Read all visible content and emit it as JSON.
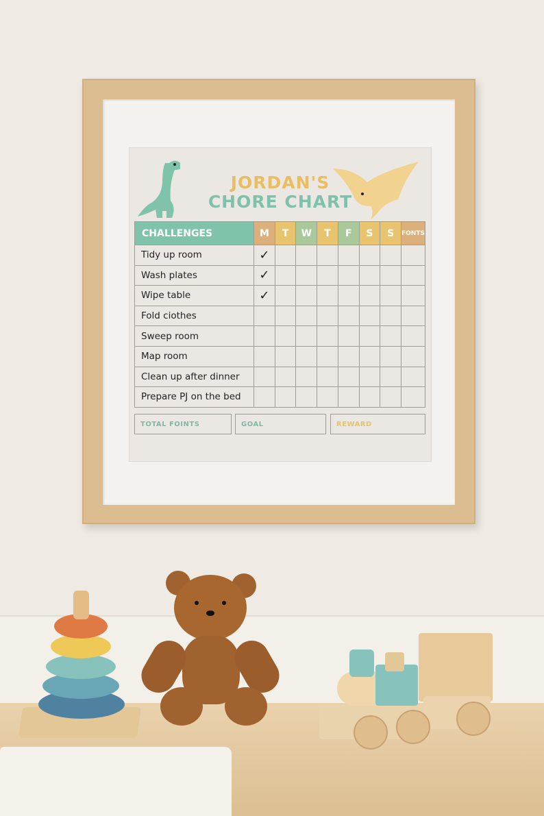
{
  "chart": {
    "title_line1": "JORDAN'S",
    "title_line2": "CHORE CHART",
    "header": "CHALLENGES",
    "days": [
      {
        "label": "M",
        "color": "#dcb07a"
      },
      {
        "label": "T",
        "color": "#e8c46e"
      },
      {
        "label": "W",
        "color": "#a9c99a"
      },
      {
        "label": "T",
        "color": "#e8c46e"
      },
      {
        "label": "F",
        "color": "#a9c99a"
      },
      {
        "label": "S",
        "color": "#e8c46e"
      },
      {
        "label": "S",
        "color": "#e8c46e"
      }
    ],
    "points_header": "FONTS",
    "points_color": "#dcb07a",
    "tasks": [
      {
        "name": "Tidy up room",
        "checks": [
          1,
          0,
          0,
          0,
          0,
          0,
          0
        ]
      },
      {
        "name": "Wash plates",
        "checks": [
          1,
          0,
          0,
          0,
          0,
          0,
          0
        ]
      },
      {
        "name": "Wipe table",
        "checks": [
          1,
          0,
          0,
          0,
          0,
          0,
          0
        ]
      },
      {
        "name": "Fold ciothes",
        "checks": [
          0,
          0,
          0,
          0,
          0,
          0,
          0
        ]
      },
      {
        "name": "Sweep room",
        "checks": [
          0,
          0,
          0,
          0,
          0,
          0,
          0
        ]
      },
      {
        "name": "Map room",
        "checks": [
          0,
          0,
          0,
          0,
          0,
          0,
          0
        ]
      },
      {
        "name": "Clean up after dinner",
        "checks": [
          0,
          0,
          0,
          0,
          0,
          0,
          0
        ]
      },
      {
        "name": "Prepare PJ on the bed",
        "checks": [
          0,
          0,
          0,
          0,
          0,
          0,
          0
        ]
      }
    ],
    "check_mark": "✓",
    "footer": {
      "total": "TOTAL FOINTS",
      "goal": "GOAL",
      "reward": "REWARD"
    },
    "colors": {
      "teal": "#7fc4aa",
      "mustard": "#e8c06a",
      "frame": "#dcbd90"
    }
  }
}
